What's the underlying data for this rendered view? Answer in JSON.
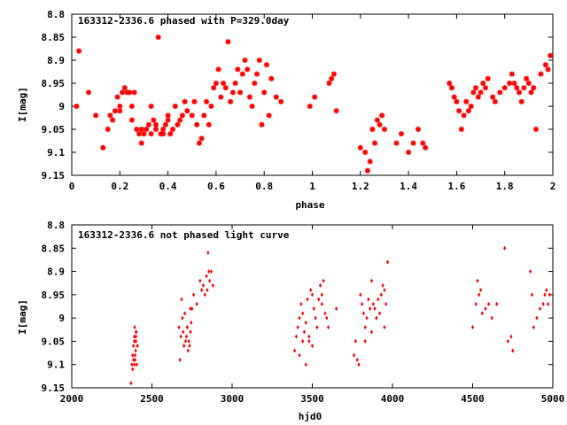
{
  "colors": {
    "point": "#ff0000",
    "axis": "#000000",
    "background": "#ffffff"
  },
  "chart_data": [
    {
      "type": "scatter",
      "title": "163312-2336.6 phased with P=329.0day",
      "xlabel": "phase",
      "ylabel": "I[mag]",
      "xlim": [
        0,
        2
      ],
      "ylim": [
        8.8,
        9.15
      ],
      "y_inverted": true,
      "grid": false,
      "xticks": [
        "0",
        "0.2",
        "0.4",
        "0.6",
        "0.8",
        "1",
        "1.2",
        "1.4",
        "1.6",
        "1.8",
        "2"
      ],
      "yticks": [
        "8.8",
        "8.85",
        "8.9",
        "8.95",
        "9",
        "9.05",
        "9.1",
        "9.15"
      ],
      "marker": "asterisk",
      "x": [
        0.02,
        0.03,
        0.07,
        0.1,
        0.13,
        0.15,
        0.16,
        0.17,
        0.18,
        0.19,
        0.2,
        0.2,
        0.21,
        0.22,
        0.23,
        0.24,
        0.25,
        0.25,
        0.26,
        0.27,
        0.28,
        0.29,
        0.29,
        0.3,
        0.31,
        0.32,
        0.33,
        0.33,
        0.34,
        0.35,
        0.35,
        0.36,
        0.37,
        0.38,
        0.38,
        0.39,
        0.4,
        0.4,
        0.41,
        0.42,
        0.43,
        0.44,
        0.45,
        0.46,
        0.47,
        0.48,
        0.5,
        0.51,
        0.52,
        0.53,
        0.54,
        0.55,
        0.56,
        0.57,
        0.58,
        0.59,
        0.6,
        0.61,
        0.62,
        0.63,
        0.64,
        0.65,
        0.66,
        0.67,
        0.68,
        0.69,
        0.7,
        0.71,
        0.72,
        0.73,
        0.74,
        0.75,
        0.76,
        0.77,
        0.78,
        0.79,
        0.8,
        0.81,
        0.82,
        0.83,
        0.85,
        0.87,
        0.99,
        1.01,
        1.07,
        1.08,
        1.09,
        1.1,
        1.2,
        1.22,
        1.23,
        1.24,
        1.25,
        1.26,
        1.27,
        1.28,
        1.29,
        1.3,
        1.35,
        1.37,
        1.4,
        1.42,
        1.44,
        1.46,
        1.47,
        1.57,
        1.58,
        1.59,
        1.6,
        1.61,
        1.62,
        1.63,
        1.64,
        1.65,
        1.66,
        1.67,
        1.68,
        1.69,
        1.7,
        1.71,
        1.72,
        1.73,
        1.75,
        1.76,
        1.78,
        1.8,
        1.82,
        1.83,
        1.84,
        1.85,
        1.86,
        1.87,
        1.88,
        1.89,
        1.9,
        1.91,
        1.92,
        1.93,
        1.95,
        1.97,
        1.98,
        1.99
      ],
      "y": [
        9.0,
        8.88,
        8.97,
        9.02,
        9.09,
        9.05,
        9.02,
        9.03,
        9.01,
        8.98,
        9.01,
        9.0,
        8.97,
        8.96,
        8.97,
        8.97,
        9.0,
        9.03,
        8.97,
        9.05,
        9.06,
        9.05,
        9.08,
        9.06,
        9.05,
        9.04,
        9.06,
        9.0,
        9.03,
        9.05,
        9.04,
        8.85,
        9.06,
        9.06,
        9.05,
        9.04,
        9.02,
        9.03,
        9.06,
        9.05,
        9.0,
        9.04,
        9.03,
        9.02,
        8.99,
        9.01,
        9.02,
        8.99,
        9.04,
        9.08,
        9.07,
        9.02,
        8.99,
        9.04,
        9.0,
        8.96,
        8.95,
        8.92,
        8.98,
        8.95,
        8.96,
        8.86,
        8.99,
        8.97,
        8.95,
        8.92,
        8.97,
        8.93,
        8.9,
        8.92,
        8.98,
        9.0,
        8.95,
        8.93,
        8.9,
        9.04,
        8.97,
        8.91,
        9.02,
        8.94,
        8.98,
        8.99,
        9.0,
        8.98,
        8.95,
        8.94,
        8.93,
        9.01,
        9.09,
        9.1,
        9.14,
        9.12,
        9.05,
        9.08,
        9.03,
        9.04,
        9.02,
        9.05,
        9.08,
        9.06,
        9.1,
        9.08,
        9.05,
        9.08,
        9.09,
        8.95,
        8.96,
        8.98,
        8.99,
        9.01,
        9.05,
        9.02,
        8.99,
        9.01,
        9.0,
        8.97,
        8.96,
        8.98,
        8.97,
        8.95,
        8.96,
        8.94,
        8.98,
        8.99,
        8.97,
        8.96,
        8.95,
        8.93,
        8.95,
        8.96,
        8.97,
        8.99,
        8.96,
        8.94,
        8.95,
        8.97,
        8.96,
        9.05,
        8.93,
        8.91,
        8.92,
        8.89
      ]
    },
    {
      "type": "scatter",
      "title": "163312-2336.6 not phased light curve",
      "xlabel": "hjd0",
      "ylabel": "I[mag]",
      "xlim": [
        2000,
        5000
      ],
      "ylim": [
        8.8,
        9.15
      ],
      "y_inverted": true,
      "grid": false,
      "xticks": [
        "2000",
        "2500",
        "3000",
        "3500",
        "4000",
        "4500",
        "5000"
      ],
      "yticks": [
        "8.8",
        "8.85",
        "8.9",
        "8.95",
        "9",
        "9.05",
        "9.1",
        "9.15"
      ],
      "marker": "dot",
      "x": [
        2370,
        2375,
        2380,
        2385,
        2390,
        2392,
        2395,
        2398,
        2400,
        2402,
        2405,
        2410,
        2380,
        2385,
        2395,
        2400,
        2390,
        2400,
        2390,
        2410,
        2668,
        2675,
        2680,
        2685,
        2690,
        2695,
        2700,
        2705,
        2710,
        2715,
        2720,
        2725,
        2730,
        2735,
        2740,
        2745,
        2750,
        2700,
        2720,
        2740,
        2760,
        2780,
        2800,
        2810,
        2820,
        2830,
        2840,
        2850,
        2860,
        2870,
        2880,
        2845,
        2855,
        3390,
        3400,
        3410,
        3420,
        3430,
        3440,
        3450,
        3460,
        3470,
        3480,
        3490,
        3500,
        3510,
        3520,
        3530,
        3540,
        3550,
        3560,
        3570,
        3580,
        3590,
        3600,
        3650,
        3460,
        3480,
        3500,
        3420,
        3440,
        3560,
        3760,
        3770,
        3780,
        3790,
        3800,
        3810,
        3820,
        3830,
        3840,
        3850,
        3860,
        3870,
        3880,
        3890,
        3900,
        3910,
        3920,
        3930,
        3940,
        3950,
        3960,
        3970,
        3830,
        3870,
        3900,
        3950,
        4500,
        4520,
        4530,
        4540,
        4550,
        4560,
        4580,
        4600,
        4620,
        4650,
        4700,
        4720,
        4740,
        4750,
        4860,
        4870,
        4880,
        4900,
        4920,
        4940,
        4950,
        4960,
        4970,
        4980
      ],
      "y": [
        9.14,
        9.1,
        9.08,
        9.06,
        9.04,
        9.02,
        9.09,
        9.07,
        9.05,
        9.03,
        9.1,
        9.06,
        9.11,
        9.09,
        9.08,
        9.03,
        9.05,
        9.04,
        9.1,
        9.06,
        9.02,
        9.09,
        9.04,
        8.96,
        9.0,
        9.03,
        9.06,
        8.99,
        9.05,
        9.04,
        9.02,
        9.07,
        9.05,
        9.06,
        9.03,
        9.01,
        8.98,
        9.06,
        9.02,
        8.98,
        8.95,
        8.97,
        8.92,
        8.94,
        8.93,
        8.95,
        8.91,
        8.86,
        8.92,
        8.9,
        8.93,
        8.94,
        8.9,
        9.07,
        9.04,
        9.02,
        9.0,
        8.97,
        8.99,
        9.03,
        9.01,
        8.96,
        9.05,
        8.94,
        8.95,
        8.98,
        9.0,
        9.02,
        8.96,
        8.93,
        8.95,
        8.92,
        8.99,
        9.0,
        9.02,
        8.98,
        9.1,
        9.04,
        9.06,
        9.08,
        9.05,
        8.97,
        9.08,
        9.05,
        9.09,
        9.1,
        8.95,
        8.97,
        8.99,
        9.02,
        9.0,
        8.96,
        8.98,
        9.03,
        8.97,
        8.98,
        9.0,
        8.96,
        8.99,
        8.95,
        8.93,
        8.94,
        8.97,
        8.88,
        9.05,
        8.92,
        9.0,
        9.02,
        9.02,
        8.97,
        8.92,
        8.95,
        8.94,
        8.99,
        8.98,
        8.97,
        9.0,
        8.97,
        8.85,
        9.05,
        9.04,
        9.07,
        8.9,
        8.95,
        9.02,
        9.0,
        8.98,
        8.97,
        8.95,
        8.94,
        8.97,
        8.95
      ]
    }
  ]
}
